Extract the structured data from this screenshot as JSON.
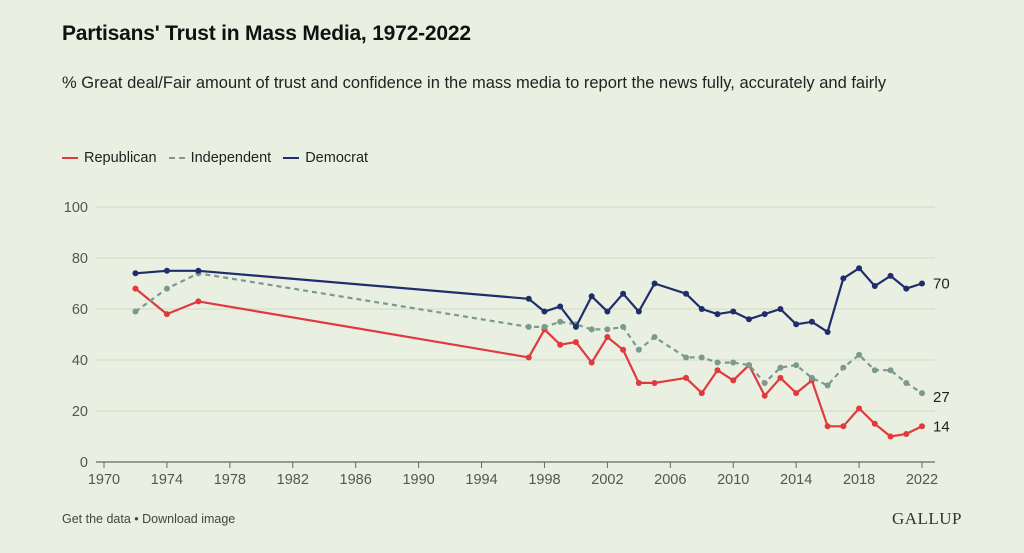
{
  "chart_data": {
    "type": "line",
    "title": "Partisans' Trust in Mass Media, 1972-2022",
    "subtitle": "% Great deal/Fair amount of trust and confidence in the mass media to report the news fully, accurately and fairly",
    "xlim": [
      1970,
      2022
    ],
    "ylim": [
      0,
      100
    ],
    "x_ticks": [
      1970,
      1974,
      1978,
      1982,
      1986,
      1990,
      1994,
      1998,
      2002,
      2006,
      2010,
      2014,
      2018,
      2022
    ],
    "y_ticks": [
      0,
      20,
      40,
      60,
      80,
      100
    ],
    "grid": "horizontal",
    "legend_position": "top-left",
    "series": [
      {
        "name": "Republican",
        "color": "#e03a3e",
        "style": "solid",
        "end_label": "14",
        "points": [
          [
            1972,
            68
          ],
          [
            1974,
            58
          ],
          [
            1976,
            63
          ],
          [
            1997,
            41
          ],
          [
            1998,
            52
          ],
          [
            1999,
            46
          ],
          [
            2000,
            47
          ],
          [
            2001,
            39
          ],
          [
            2002,
            49
          ],
          [
            2003,
            44
          ],
          [
            2004,
            31
          ],
          [
            2005,
            31
          ],
          [
            2007,
            33
          ],
          [
            2008,
            27
          ],
          [
            2009,
            36
          ],
          [
            2010,
            32
          ],
          [
            2011,
            38
          ],
          [
            2012,
            26
          ],
          [
            2013,
            33
          ],
          [
            2014,
            27
          ],
          [
            2015,
            32
          ],
          [
            2016,
            14
          ],
          [
            2017,
            14
          ],
          [
            2018,
            21
          ],
          [
            2019,
            15
          ],
          [
            2020,
            10
          ],
          [
            2021,
            11
          ],
          [
            2022,
            14
          ]
        ]
      },
      {
        "name": "Independent",
        "color": "#7b9a8d",
        "style": "dashed",
        "end_label": "27",
        "points": [
          [
            1972,
            59
          ],
          [
            1974,
            68
          ],
          [
            1976,
            74
          ],
          [
            1997,
            53
          ],
          [
            1998,
            53
          ],
          [
            1999,
            55
          ],
          [
            2000,
            54
          ],
          [
            2001,
            52
          ],
          [
            2002,
            52
          ],
          [
            2003,
            53
          ],
          [
            2004,
            44
          ],
          [
            2005,
            49
          ],
          [
            2007,
            41
          ],
          [
            2008,
            41
          ],
          [
            2009,
            39
          ],
          [
            2010,
            39
          ],
          [
            2011,
            38
          ],
          [
            2012,
            31
          ],
          [
            2013,
            37
          ],
          [
            2014,
            38
          ],
          [
            2015,
            33
          ],
          [
            2016,
            30
          ],
          [
            2017,
            37
          ],
          [
            2018,
            42
          ],
          [
            2019,
            36
          ],
          [
            2020,
            36
          ],
          [
            2021,
            31
          ],
          [
            2022,
            27
          ]
        ]
      },
      {
        "name": "Democrat",
        "color": "#1f2d6b",
        "style": "solid",
        "end_label": "70",
        "points": [
          [
            1972,
            74
          ],
          [
            1974,
            75
          ],
          [
            1976,
            75
          ],
          [
            1997,
            64
          ],
          [
            1998,
            59
          ],
          [
            1999,
            61
          ],
          [
            2000,
            53
          ],
          [
            2001,
            65
          ],
          [
            2002,
            59
          ],
          [
            2003,
            66
          ],
          [
            2004,
            59
          ],
          [
            2005,
            70
          ],
          [
            2007,
            66
          ],
          [
            2008,
            60
          ],
          [
            2009,
            58
          ],
          [
            2010,
            59
          ],
          [
            2011,
            56
          ],
          [
            2012,
            58
          ],
          [
            2013,
            60
          ],
          [
            2014,
            54
          ],
          [
            2015,
            55
          ],
          [
            2016,
            51
          ],
          [
            2017,
            72
          ],
          [
            2018,
            76
          ],
          [
            2019,
            69
          ],
          [
            2020,
            73
          ],
          [
            2021,
            68
          ],
          [
            2022,
            70
          ]
        ]
      }
    ]
  },
  "footer": {
    "get_data": "Get the data",
    "separator": " • ",
    "download": "Download image"
  },
  "brand": "GALLUP"
}
